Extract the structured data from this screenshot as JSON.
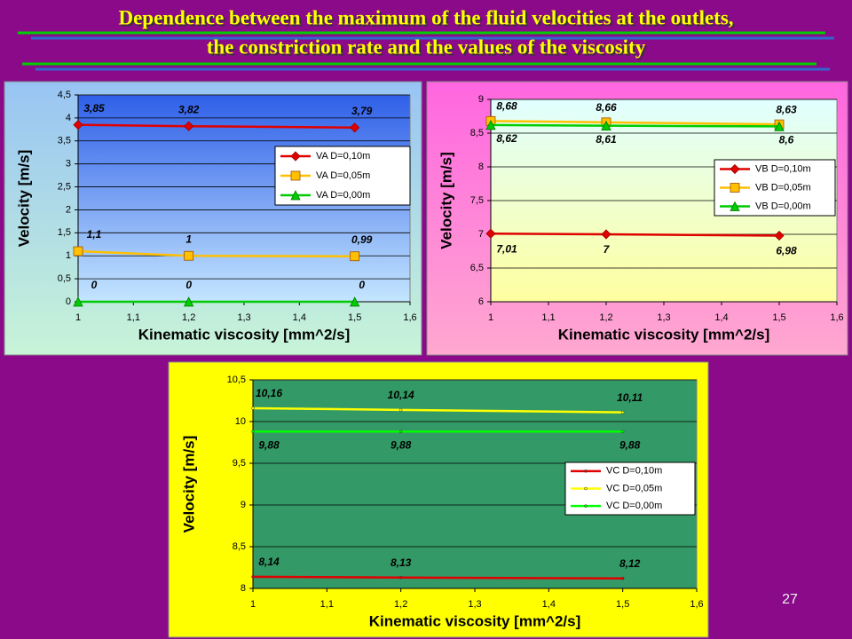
{
  "title": [
    "Dependence between the maximum of the fluid velocities at the outlets,",
    "the constriction rate and the values of the viscosity"
  ],
  "page_number": "27",
  "chart_data": [
    {
      "type": "line",
      "xlabel": "Kinematic viscosity [mm^2/s]",
      "ylabel": "Velocity [m/s]",
      "x": [
        1,
        1.2,
        1.5
      ],
      "xlim": [
        1,
        1.6
      ],
      "xticks": [
        1,
        {
          "value": 1.1,
          "label": "1,1"
        },
        {
          "value": 1.2,
          "label": "1,2"
        },
        {
          "value": 1.3,
          "label": "1,3"
        },
        {
          "value": 1.4,
          "label": "1,4"
        },
        {
          "value": 1.5,
          "label": "1,5"
        },
        {
          "value": 1.6,
          "label": "1,6"
        }
      ],
      "ylim": [
        0,
        4.5
      ],
      "yticks": [
        0,
        {
          "value": 0.5,
          "label": "0,5"
        },
        1,
        {
          "value": 1.5,
          "label": "1,5"
        },
        2,
        {
          "value": 2.5,
          "label": "2,5"
        },
        3,
        {
          "value": 3.5,
          "label": "3,5"
        },
        4,
        {
          "value": 4.5,
          "label": "4,5"
        }
      ],
      "grid": true,
      "legend": "right",
      "series": [
        {
          "name": "VA D=0,10m",
          "color": "#e00000",
          "marker": "diamond",
          "values": [
            3.85,
            3.82,
            3.79
          ],
          "value_labels": [
            "3,85",
            "3,82",
            "3,79"
          ]
        },
        {
          "name": "VA D=0,05m",
          "color": "#ffc000",
          "marker": "square",
          "values": [
            1.1,
            1,
            0.99
          ],
          "value_labels": [
            "1,1",
            "1",
            "0,99"
          ]
        },
        {
          "name": "VA D=0,00m",
          "color": "#00cc00",
          "marker": "triangle",
          "values": [
            0,
            0,
            0
          ],
          "value_labels": [
            "0",
            "0",
            "0"
          ]
        }
      ]
    },
    {
      "type": "line",
      "xlabel": "Kinematic viscosity [mm^2/s]",
      "ylabel": "Velocity [m/s]",
      "x": [
        1,
        1.2,
        1.5
      ],
      "xlim": [
        1,
        1.6
      ],
      "xticks": [
        1,
        {
          "value": 1.1,
          "label": "1,1"
        },
        {
          "value": 1.2,
          "label": "1,2"
        },
        {
          "value": 1.3,
          "label": "1,3"
        },
        {
          "value": 1.4,
          "label": "1,4"
        },
        {
          "value": 1.5,
          "label": "1,5"
        },
        {
          "value": 1.6,
          "label": "1,6"
        }
      ],
      "ylim": [
        6,
        9
      ],
      "yticks": [
        6,
        {
          "value": 6.5,
          "label": "6,5"
        },
        7,
        {
          "value": 7.5,
          "label": "7,5"
        },
        8,
        {
          "value": 8.5,
          "label": "8,5"
        },
        9
      ],
      "grid": true,
      "legend": "right",
      "series": [
        {
          "name": "VB D=0,10m",
          "color": "#e00000",
          "marker": "diamond",
          "values": [
            7.01,
            7,
            6.98
          ],
          "value_labels": [
            "7,01",
            "7",
            "6,98"
          ]
        },
        {
          "name": "VB D=0,05m",
          "color": "#ffc000",
          "marker": "square",
          "values": [
            8.68,
            8.66,
            8.63
          ],
          "value_labels": [
            "8,68",
            "8,66",
            "8,63"
          ]
        },
        {
          "name": "VB D=0,00m",
          "color": "#00cc00",
          "marker": "triangle",
          "values": [
            8.62,
            8.61,
            8.6
          ],
          "value_labels": [
            "8,62",
            "8,61",
            "8,6"
          ]
        }
      ]
    },
    {
      "type": "line",
      "xlabel": "Kinematic viscosity [mm^2/s]",
      "ylabel": "Velocity [m/s]",
      "x": [
        1,
        1.2,
        1.5
      ],
      "xlim": [
        1,
        1.6
      ],
      "xticks": [
        1,
        {
          "value": 1.1,
          "label": "1,1"
        },
        {
          "value": 1.2,
          "label": "1,2"
        },
        {
          "value": 1.3,
          "label": "1,3"
        },
        {
          "value": 1.4,
          "label": "1,4"
        },
        {
          "value": 1.5,
          "label": "1,5"
        },
        {
          "value": 1.6,
          "label": "1,6"
        }
      ],
      "ylim": [
        8,
        10.5
      ],
      "yticks": [
        8,
        {
          "value": 8.5,
          "label": "8,5"
        },
        9,
        {
          "value": 9.5,
          "label": "9,5"
        },
        10,
        {
          "value": 10.5,
          "label": "10,5"
        }
      ],
      "grid": true,
      "legend": "right",
      "series": [
        {
          "name": "VC D=0,10m",
          "color": "#e00000",
          "marker": "dot",
          "values": [
            8.14,
            8.13,
            8.12
          ],
          "value_labels": [
            "8,14",
            "8,13",
            "8,12"
          ]
        },
        {
          "name": "VC D=0,05m",
          "color": "#ffff00",
          "marker": "dot",
          "values": [
            10.16,
            10.14,
            10.11
          ],
          "value_labels": [
            "10,16",
            "10,14",
            "10,11"
          ]
        },
        {
          "name": "VC D=0,00m",
          "color": "#00ff00",
          "marker": "dot",
          "values": [
            9.88,
            9.88,
            9.88
          ],
          "value_labels": [
            "9,88",
            "9,88",
            "9,88"
          ]
        }
      ]
    }
  ]
}
